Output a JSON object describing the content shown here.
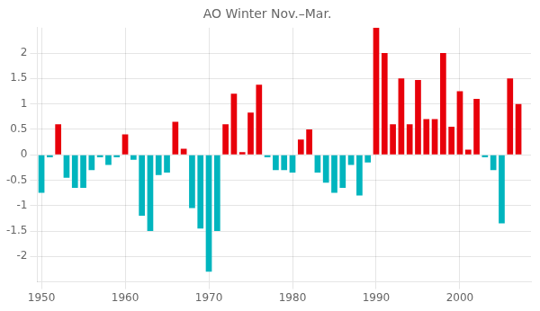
{
  "chart_data": {
    "type": "bar",
    "title": "AO Winter Nov.–Mar.",
    "x": [
      1950,
      1951,
      1952,
      1953,
      1954,
      1955,
      1956,
      1957,
      1958,
      1959,
      1960,
      1961,
      1962,
      1963,
      1964,
      1965,
      1966,
      1967,
      1968,
      1969,
      1970,
      1971,
      1972,
      1973,
      1974,
      1975,
      1976,
      1977,
      1978,
      1979,
      1980,
      1981,
      1982,
      1983,
      1984,
      1985,
      1986,
      1987,
      1988,
      1989,
      1990,
      1991,
      1992,
      1993,
      1994,
      1995,
      1996,
      1997,
      1998,
      1999,
      2000,
      2001,
      2002,
      2003,
      2004,
      2005,
      2006,
      2007
    ],
    "values": [
      -0.75,
      -0.05,
      0.6,
      -0.45,
      -0.65,
      -0.65,
      -0.3,
      -0.05,
      -0.2,
      -0.05,
      0.4,
      -0.1,
      -1.2,
      -1.5,
      -0.4,
      -0.35,
      0.65,
      0.12,
      -1.05,
      -1.45,
      -2.3,
      -1.5,
      0.6,
      1.2,
      0.05,
      0.83,
      1.38,
      -0.05,
      -0.3,
      -0.3,
      -0.35,
      0.3,
      0.5,
      -0.35,
      -0.55,
      -0.75,
      -0.65,
      -0.2,
      -0.8,
      -0.15,
      2.5,
      2.0,
      0.6,
      1.5,
      0.6,
      1.47,
      0.7,
      0.7,
      2.0,
      0.55,
      1.25,
      0.1,
      1.1,
      -0.05,
      -0.3,
      -1.35,
      1.5,
      1.0
    ],
    "colors": [
      "#00b5be",
      "#00b5be",
      "#e8000a",
      "#00b5be",
      "#00b5be",
      "#00b5be",
      "#00b5be",
      "#00b5be",
      "#00b5be",
      "#00b5be",
      "#e8000a",
      "#00b5be",
      "#00b5be",
      "#00b5be",
      "#00b5be",
      "#00b5be",
      "#e8000a",
      "#e8000a",
      "#00b5be",
      "#00b5be",
      "#00b5be",
      "#00b5be",
      "#e8000a",
      "#e8000a",
      "#e8000a",
      "#e8000a",
      "#e8000a",
      "#00b5be",
      "#00b5be",
      "#00b5be",
      "#00b5be",
      "#e8000a",
      "#e8000a",
      "#00b5be",
      "#00b5be",
      "#00b5be",
      "#00b5be",
      "#00b5be",
      "#00b5be",
      "#00b5be",
      "#e8000a",
      "#e8000a",
      "#e8000a",
      "#e8000a",
      "#e8000a",
      "#e8000a",
      "#e8000a",
      "#e8000a",
      "#e8000a",
      "#e8000a",
      "#e8000a",
      "#e8000a",
      "#e8000a",
      "#00b5be",
      "#00b5be",
      "#00b5be",
      "#e8000a",
      "#e8000a"
    ],
    "xlim": [
      1949.5,
      2008.5
    ],
    "xticks": [
      1950,
      1960,
      1970,
      1980,
      1990,
      2000
    ],
    "ylim": [
      -2.5,
      2.5
    ],
    "yticks": [
      -2.0,
      -1.5,
      -1.0,
      -0.5,
      0.0,
      0.5,
      1.0,
      1.5,
      2.0
    ],
    "grid": true
  }
}
